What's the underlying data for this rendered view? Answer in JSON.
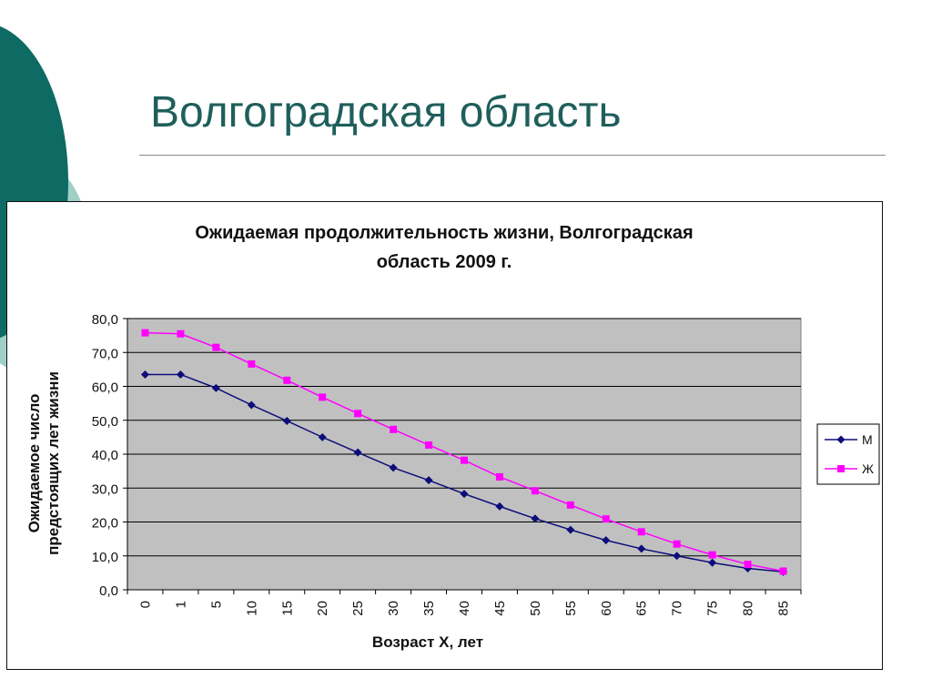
{
  "slide": {
    "title": "Волгоградская область"
  },
  "colors": {
    "accent_dark": "#0e6b63",
    "accent_light": "#9fcfc7",
    "plot_bg": "#c0c0c0",
    "series_m": "#0d0d7a",
    "series_w": "#ff00ff"
  },
  "chart_data": {
    "type": "line",
    "title_lines": [
      "Ожидаемая продолжительность жизни,  Волгоградская",
      "область 2009 г."
    ],
    "xlabel": "Возраст Х, лет",
    "ylabel_lines": [
      "Ожидаемое число",
      "предстоящих лет жизни"
    ],
    "categories": [
      "0",
      "1",
      "5",
      "10",
      "15",
      "20",
      "25",
      "30",
      "35",
      "40",
      "45",
      "50",
      "55",
      "60",
      "65",
      "70",
      "75",
      "80",
      "85"
    ],
    "ylim": [
      0,
      80
    ],
    "yticks": [
      "0,0",
      "10,0",
      "20,0",
      "30,0",
      "40,0",
      "50,0",
      "60,0",
      "70,0",
      "80,0"
    ],
    "grid": true,
    "legend_position": "right",
    "series": [
      {
        "name": "М",
        "marker": "diamond",
        "values": [
          63.5,
          63.5,
          59.5,
          54.5,
          49.8,
          45.0,
          40.5,
          36.0,
          32.3,
          28.3,
          24.6,
          21.0,
          17.7,
          14.6,
          12.1,
          10.0,
          8.0,
          6.3,
          5.3
        ]
      },
      {
        "name": "Ж",
        "marker": "square",
        "values": [
          75.8,
          75.5,
          71.5,
          66.6,
          61.8,
          56.8,
          52.0,
          47.3,
          42.7,
          38.2,
          33.3,
          29.2,
          25.0,
          20.9,
          17.1,
          13.5,
          10.3,
          7.5,
          5.5
        ]
      }
    ]
  }
}
